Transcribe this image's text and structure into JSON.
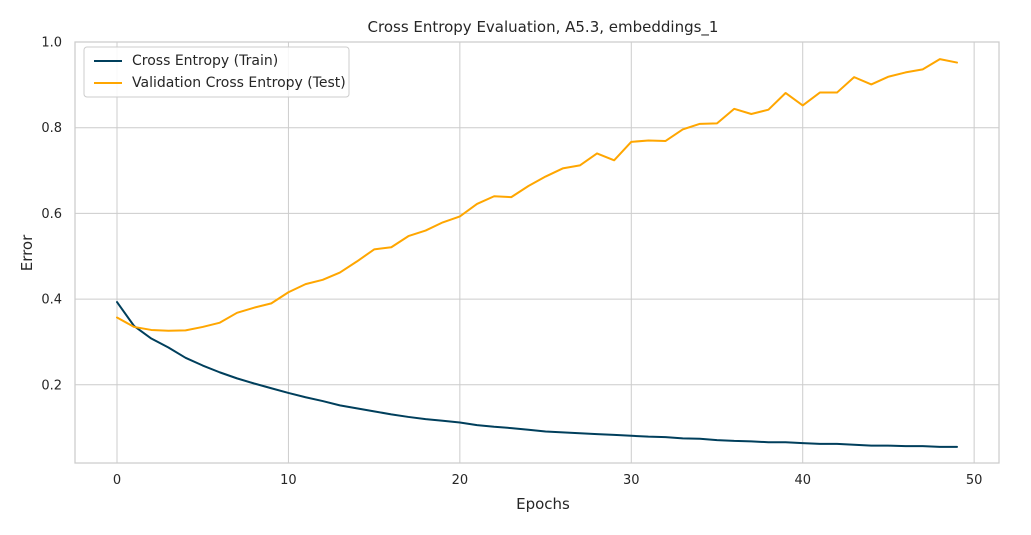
{
  "chart_data": {
    "type": "line",
    "title": "Cross Entropy Evaluation, A5.3, embeddings_1",
    "xlabel": "Epochs",
    "ylabel": "Error",
    "xlim": [
      -2.45,
      51.45
    ],
    "ylim": [
      0.0175,
      1.0
    ],
    "xticks": [
      0,
      10,
      20,
      30,
      40,
      50
    ],
    "yticks": [
      0.2,
      0.4,
      0.6,
      0.8,
      1.0
    ],
    "xtick_labels": [
      "0",
      "10",
      "20",
      "30",
      "40",
      "50"
    ],
    "ytick_labels": [
      "0.2",
      "0.4",
      "0.6",
      "0.8",
      "1.0"
    ],
    "grid": true,
    "legend_position": "top-left",
    "x": [
      0,
      1,
      2,
      3,
      4,
      5,
      6,
      7,
      8,
      9,
      10,
      11,
      12,
      13,
      14,
      15,
      16,
      17,
      18,
      19,
      20,
      21,
      22,
      23,
      24,
      25,
      26,
      27,
      28,
      29,
      30,
      31,
      32,
      33,
      34,
      35,
      36,
      37,
      38,
      39,
      40,
      41,
      42,
      43,
      44,
      45,
      46,
      47,
      48,
      49
    ],
    "series": [
      {
        "name": "Cross Entropy (Train)",
        "color": "#003f5c",
        "values": [
          0.393,
          0.337,
          0.308,
          0.287,
          0.263,
          0.245,
          0.229,
          0.215,
          0.203,
          0.192,
          0.181,
          0.171,
          0.162,
          0.152,
          0.145,
          0.138,
          0.131,
          0.125,
          0.12,
          0.116,
          0.112,
          0.106,
          0.102,
          0.099,
          0.095,
          0.091,
          0.089,
          0.087,
          0.085,
          0.083,
          0.081,
          0.079,
          0.078,
          0.075,
          0.074,
          0.071,
          0.069,
          0.068,
          0.066,
          0.066,
          0.064,
          0.062,
          0.062,
          0.06,
          0.058,
          0.058,
          0.057,
          0.057,
          0.055,
          0.055
        ]
      },
      {
        "name": "Validation Cross Entropy (Test)",
        "color": "#ffa600",
        "values": [
          0.357,
          0.335,
          0.328,
          0.326,
          0.327,
          0.335,
          0.345,
          0.368,
          0.38,
          0.39,
          0.416,
          0.435,
          0.445,
          0.462,
          0.488,
          0.516,
          0.521,
          0.547,
          0.56,
          0.579,
          0.593,
          0.622,
          0.64,
          0.638,
          0.664,
          0.686,
          0.705,
          0.712,
          0.74,
          0.724,
          0.767,
          0.77,
          0.769,
          0.796,
          0.809,
          0.81,
          0.844,
          0.832,
          0.842,
          0.881,
          0.852,
          0.882,
          0.882,
          0.918,
          0.901,
          0.919,
          0.929,
          0.936,
          0.96,
          0.952
        ]
      }
    ]
  }
}
